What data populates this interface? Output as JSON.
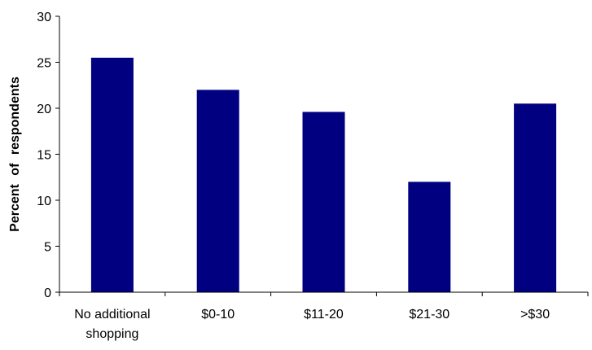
{
  "chart_data": {
    "type": "bar",
    "title": "",
    "xlabel": "",
    "ylabel": "Percent of respondents",
    "categories": [
      "No additional shopping",
      "$0-10",
      "$11-20",
      "$21-30",
      ">$30"
    ],
    "category_lines": [
      [
        "No additional",
        "shopping"
      ],
      [
        "$0-10"
      ],
      [
        "$11-20"
      ],
      [
        "$21-30"
      ],
      [
        ">$30"
      ]
    ],
    "values": [
      25.5,
      22,
      19.6,
      12,
      20.5
    ],
    "ylim": [
      0,
      30
    ],
    "yticks": [
      "0",
      "5",
      "10",
      "15",
      "20",
      "25",
      "30"
    ],
    "grid": false,
    "legend": "none",
    "bar_color": "#000080",
    "axis_color": "#000000"
  }
}
